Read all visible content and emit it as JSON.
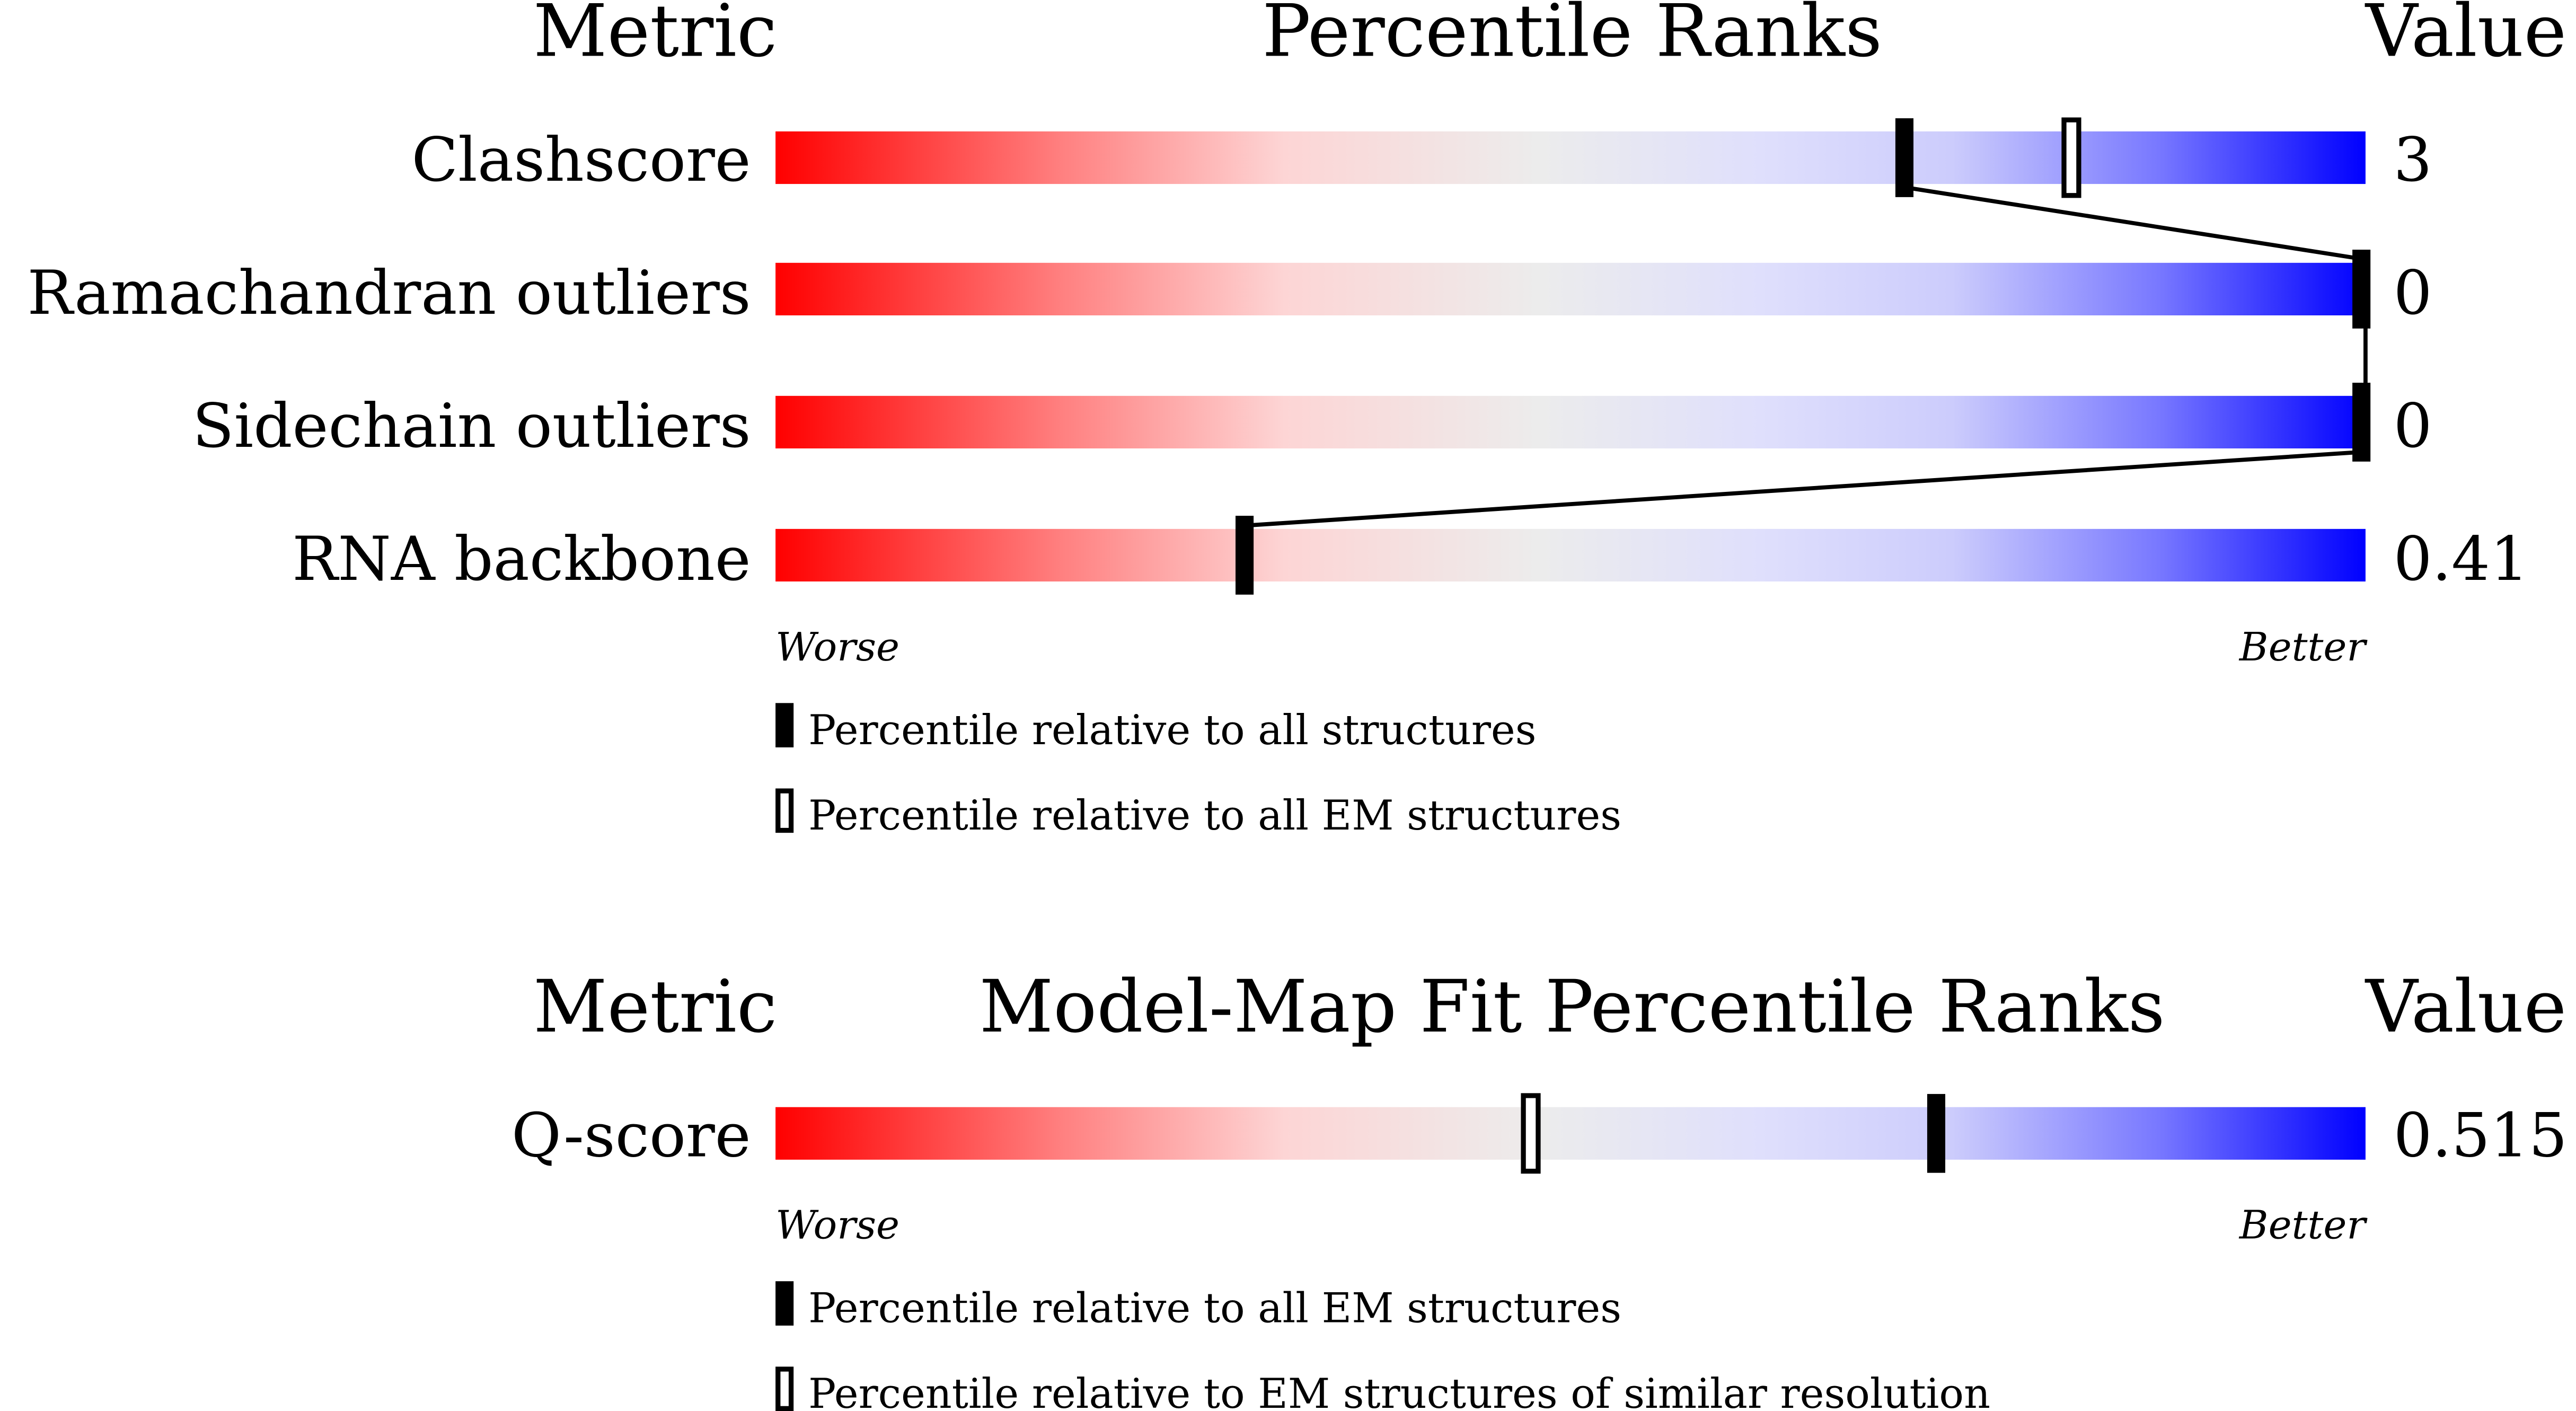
{
  "chart_data": [
    {
      "type": "percentile-rank",
      "header": {
        "metric": "Metric",
        "title": "Percentile Ranks",
        "value": "Value"
      },
      "rows": [
        {
          "metric": "Clashscore",
          "value": "3",
          "percentile_all": 71,
          "percentile_em": 81.5
        },
        {
          "metric": "Ramachandran outliers",
          "value": "0",
          "percentile_all": 100
        },
        {
          "metric": "Sidechain outliers",
          "value": "0",
          "percentile_all": 100
        },
        {
          "metric": "RNA backbone",
          "value": "0.41",
          "percentile_all": 29.5
        }
      ],
      "axis": {
        "left": "Worse",
        "right": "Better",
        "range": [
          0,
          100
        ]
      },
      "legend": [
        {
          "marker": "filled",
          "label": "Percentile relative to all structures"
        },
        {
          "marker": "open",
          "label": "Percentile relative to all EM structures"
        }
      ]
    },
    {
      "type": "percentile-rank",
      "header": {
        "metric": "Metric",
        "title": "Model-Map Fit Percentile Ranks",
        "value": "Value"
      },
      "rows": [
        {
          "metric": "Q-score",
          "value": "0.515",
          "percentile_all": 73,
          "percentile_em": 47.5
        }
      ],
      "axis": {
        "left": "Worse",
        "right": "Better",
        "range": [
          0,
          100
        ]
      },
      "legend": [
        {
          "marker": "filled",
          "label": "Percentile relative to all EM structures"
        },
        {
          "marker": "open",
          "label": "Percentile relative to EM structures of similar resolution"
        }
      ]
    }
  ],
  "colors": {
    "worse": "#ff0000",
    "middle": "#ececec",
    "better": "#0000ff",
    "marker": "#000000"
  }
}
